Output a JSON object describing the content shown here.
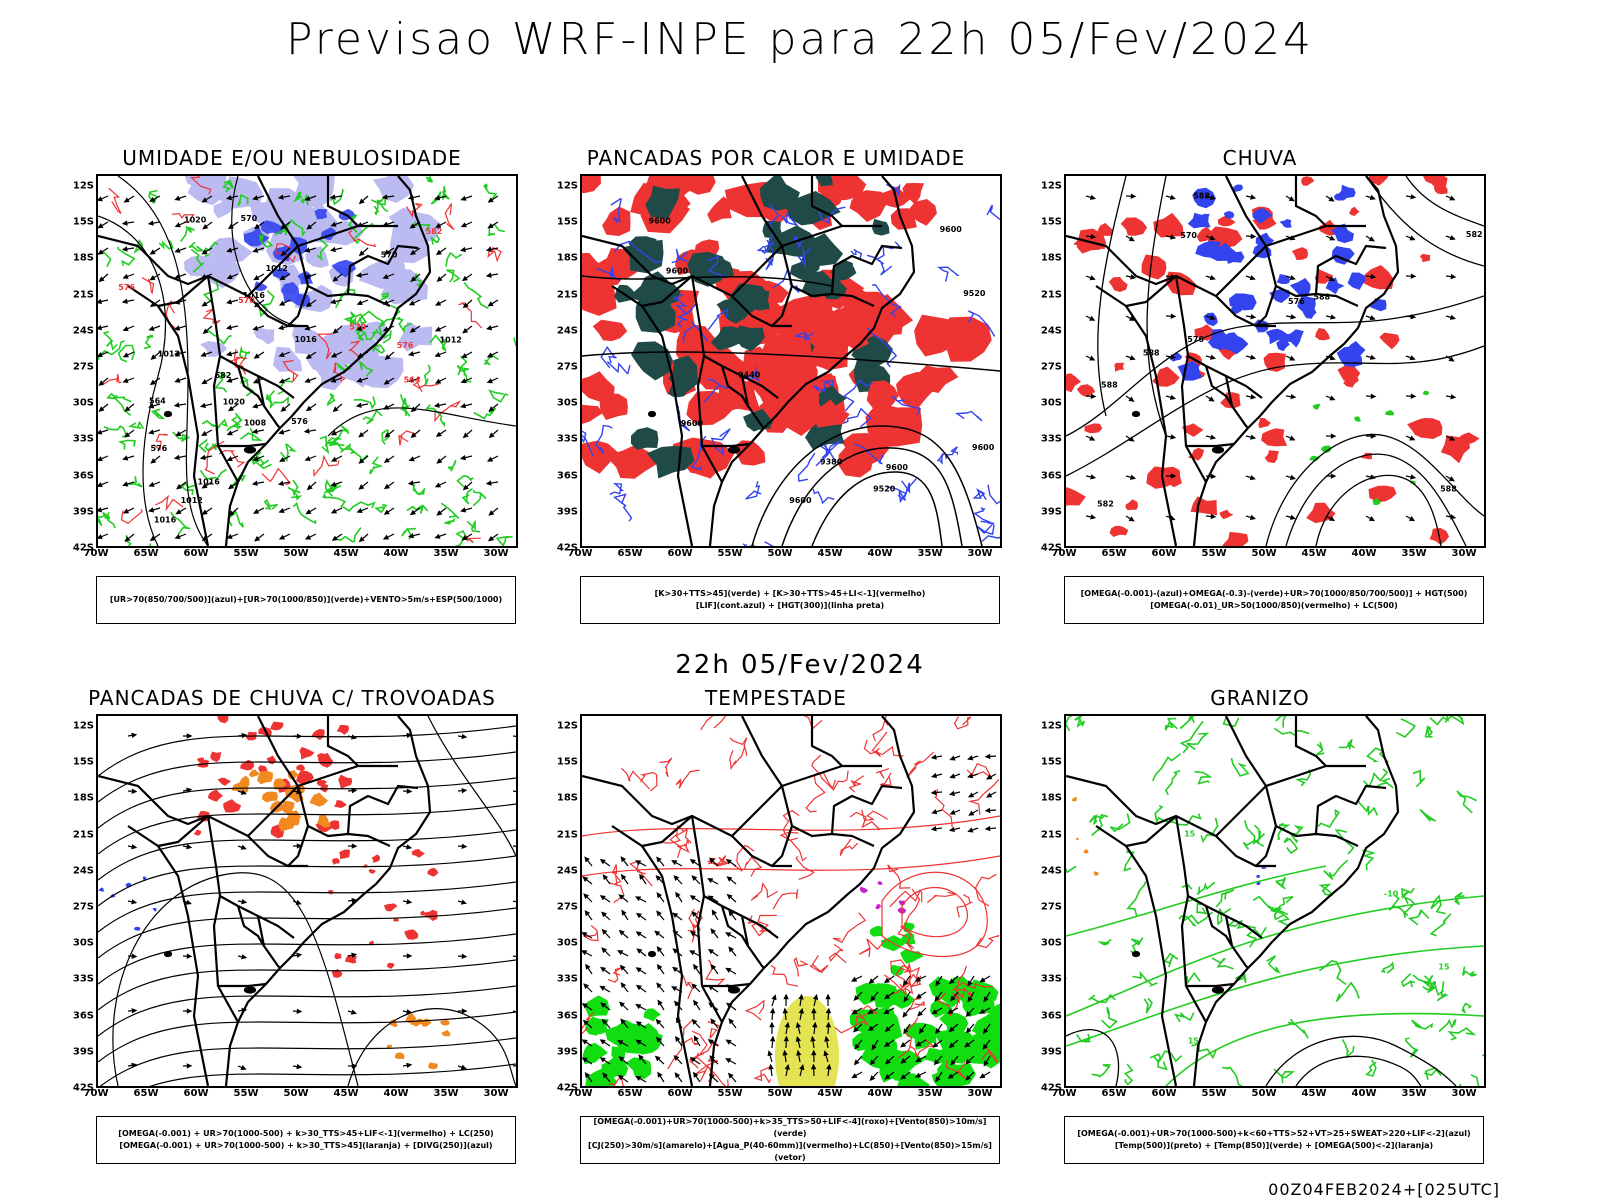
{
  "main_title": "Previsao WRF-INPE  para 22h 05/Fev/2024",
  "mid_title": "22h 05/Fev/2024",
  "footer": "00Z04FEB2024+[025UTC]",
  "lat_ticks": [
    "12S",
    "15S",
    "18S",
    "21S",
    "24S",
    "27S",
    "30S",
    "33S",
    "36S",
    "39S",
    "42S"
  ],
  "lon_ticks": [
    "70W",
    "65W",
    "60W",
    "55W",
    "50W",
    "45W",
    "40W",
    "35W",
    "30W"
  ],
  "colors": {
    "blue": "#3344ee",
    "lavender": "#b0b0f0",
    "green": "#22cc22",
    "bright_green": "#11dd11",
    "red": "#ee3333",
    "dark_teal": "#1f4a48",
    "orange": "#f08a20",
    "yellow": "#e0e040",
    "magenta": "#cc22cc",
    "black": "#000000"
  },
  "panels": [
    {
      "title": "UMIDADE E/OU NEBULOSIDADE",
      "legend": [
        "[UR>70(850/700/500)](azul)+[UR>70(1000/850)](verde)+VENTO>5m/s+ESP(500/1000)"
      ],
      "contour_labels": [
        "1012",
        "1016",
        "1016",
        "1016",
        "1012",
        "1016",
        "1020",
        "1012",
        "1008",
        "1020",
        "1012",
        "576",
        "570",
        "582",
        "564",
        "570",
        "576"
      ]
    },
    {
      "title": "PANCADAS POR CALOR E UMIDADE",
      "legend": [
        "[K>30+TTS>45](verde) + [K>30+TTS>45+LI<-1](vermelho)",
        "[LIF](cont.azul) + [HGT(300)](linha preta)"
      ],
      "contour_labels": [
        "9600",
        "9600",
        "9600",
        "9600",
        "9600",
        "9600",
        "9520",
        "9440",
        "9380",
        "9600",
        "9520"
      ]
    },
    {
      "title": "CHUVA",
      "legend": [
        "[OMEGA(-0.001)-(azul)+OMEGA(-0.3)-(verde)+UR>70(1000/850/700/500)] + HGT(500)",
        "[OMEGA(-0.01)_UR>50(1000/850)(vermelho) + LC(500)"
      ],
      "contour_labels": [
        "588",
        "588",
        "588",
        "588",
        "588",
        "582",
        "576",
        "570",
        "576",
        "582"
      ]
    },
    {
      "title": "PANCADAS DE CHUVA C/ TROVOADAS",
      "legend": [
        "[OMEGA(-0.001) + UR>70(1000-500) + k>30_TTS>45+LIF<-1](vermelho) + LC(250)",
        "[OMEGA(-0.001) + UR>70(1000-500) + k>30_TTS>45](laranja) + [DIVG(250)](azul)"
      ],
      "contour_labels": []
    },
    {
      "title": "TEMPESTADE",
      "legend": [
        "[OMEGA(-0.001)+UR>70(1000-500)+k>35_TTS>50+LIF<-4](roxo)+[Vento(850)>10m/s](verde)",
        "[CJ(250)>30m/s](amarelo)+[Agua_P(40-60mm)](vermelho)+LC(850)+[Vento(850)>15m/s](vetor)"
      ],
      "contour_labels": []
    },
    {
      "title": "GRANIZO",
      "legend": [
        "[OMEGA(-0.001)+UR>70(1000-500)+k<60+TTS>52+VT>25+SWEAT>220+LIF<-2](azul)",
        "[Temp(500)](preto) + [Temp(850)](verde) + [OMEGA(500)<-2](laranja)"
      ],
      "contour_labels": [
        "15",
        "15",
        "15",
        "-10"
      ]
    }
  ]
}
